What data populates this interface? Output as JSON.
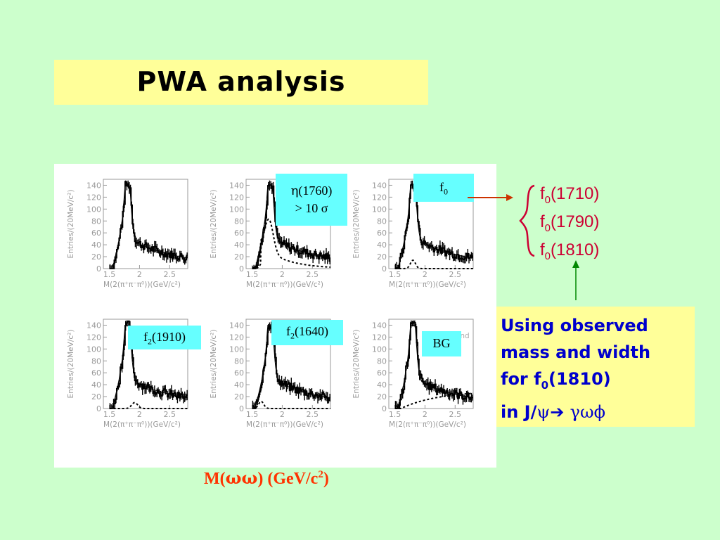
{
  "title": "PWA analysis",
  "panels": {
    "y_axis_label": "Entries/(20MeV/c²)",
    "x_axis_label": "M(2(π⁺π⁻π⁰))(GeV/c²)",
    "y_ticks": [
      "0",
      "20",
      "40",
      "60",
      "80",
      "100",
      "120",
      "140"
    ],
    "x_ticks": [
      "1.5",
      "2",
      "2.5"
    ],
    "bg_panel_text": "Background"
  },
  "tags": {
    "eta_mass": "(1760)",
    "eta_symbol": "η",
    "eta_significance": "> 10 σ",
    "f0_base": "f",
    "f0_sub": "0",
    "f2_1910_base": "f",
    "f2_1910_sub": "2",
    "f2_1910_mass": "(1910)",
    "f2_1640_base": "f",
    "f2_1640_sub": "2",
    "f2_1640_mass": "(1640)",
    "bg": "BG"
  },
  "xlabel": {
    "prefix": "M(",
    "omegas": "ωω",
    "suffix": ") (GeV/c",
    "sup": "2",
    "close": ")"
  },
  "f0_candidates": [
    {
      "base": "f",
      "sub": "0",
      "mass": "(1710)"
    },
    {
      "base": "f",
      "sub": "0",
      "mass": "(1790)"
    },
    {
      "base": "f",
      "sub": "0",
      "mass": "(1810)"
    }
  ],
  "note": {
    "line1": "Using observed",
    "line2": "mass and width",
    "line3_prefix": "for f",
    "line3_sub": "0",
    "line3_suffix": "(1810)",
    "line4_prefix": "in J/",
    "line4_psi": "ψ",
    "line4_arrow": "➔",
    "line4_final": "γωϕ"
  },
  "colors": {
    "background": "#ccffcc",
    "title_box": "#ffff99",
    "tag_fill": "#66ffff",
    "xlabel": "#ff3300",
    "f0_text": "#cc0033",
    "note_text": "#0000cc",
    "red_arrow": "#cc3300",
    "green_arrow": "#008800"
  }
}
